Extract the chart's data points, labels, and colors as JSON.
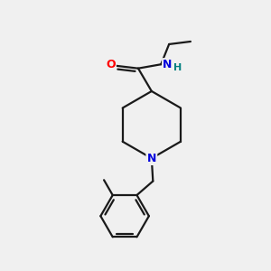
{
  "bg_color": "#f0f0f0",
  "bond_color": "#1a1a1a",
  "N_color": "#0000dd",
  "O_color": "#ff0000",
  "NH_color": "#008080",
  "line_width": 1.6,
  "figsize": [
    3.0,
    3.0
  ],
  "dpi": 100,
  "xlim": [
    0,
    10
  ],
  "ylim": [
    0,
    10
  ]
}
